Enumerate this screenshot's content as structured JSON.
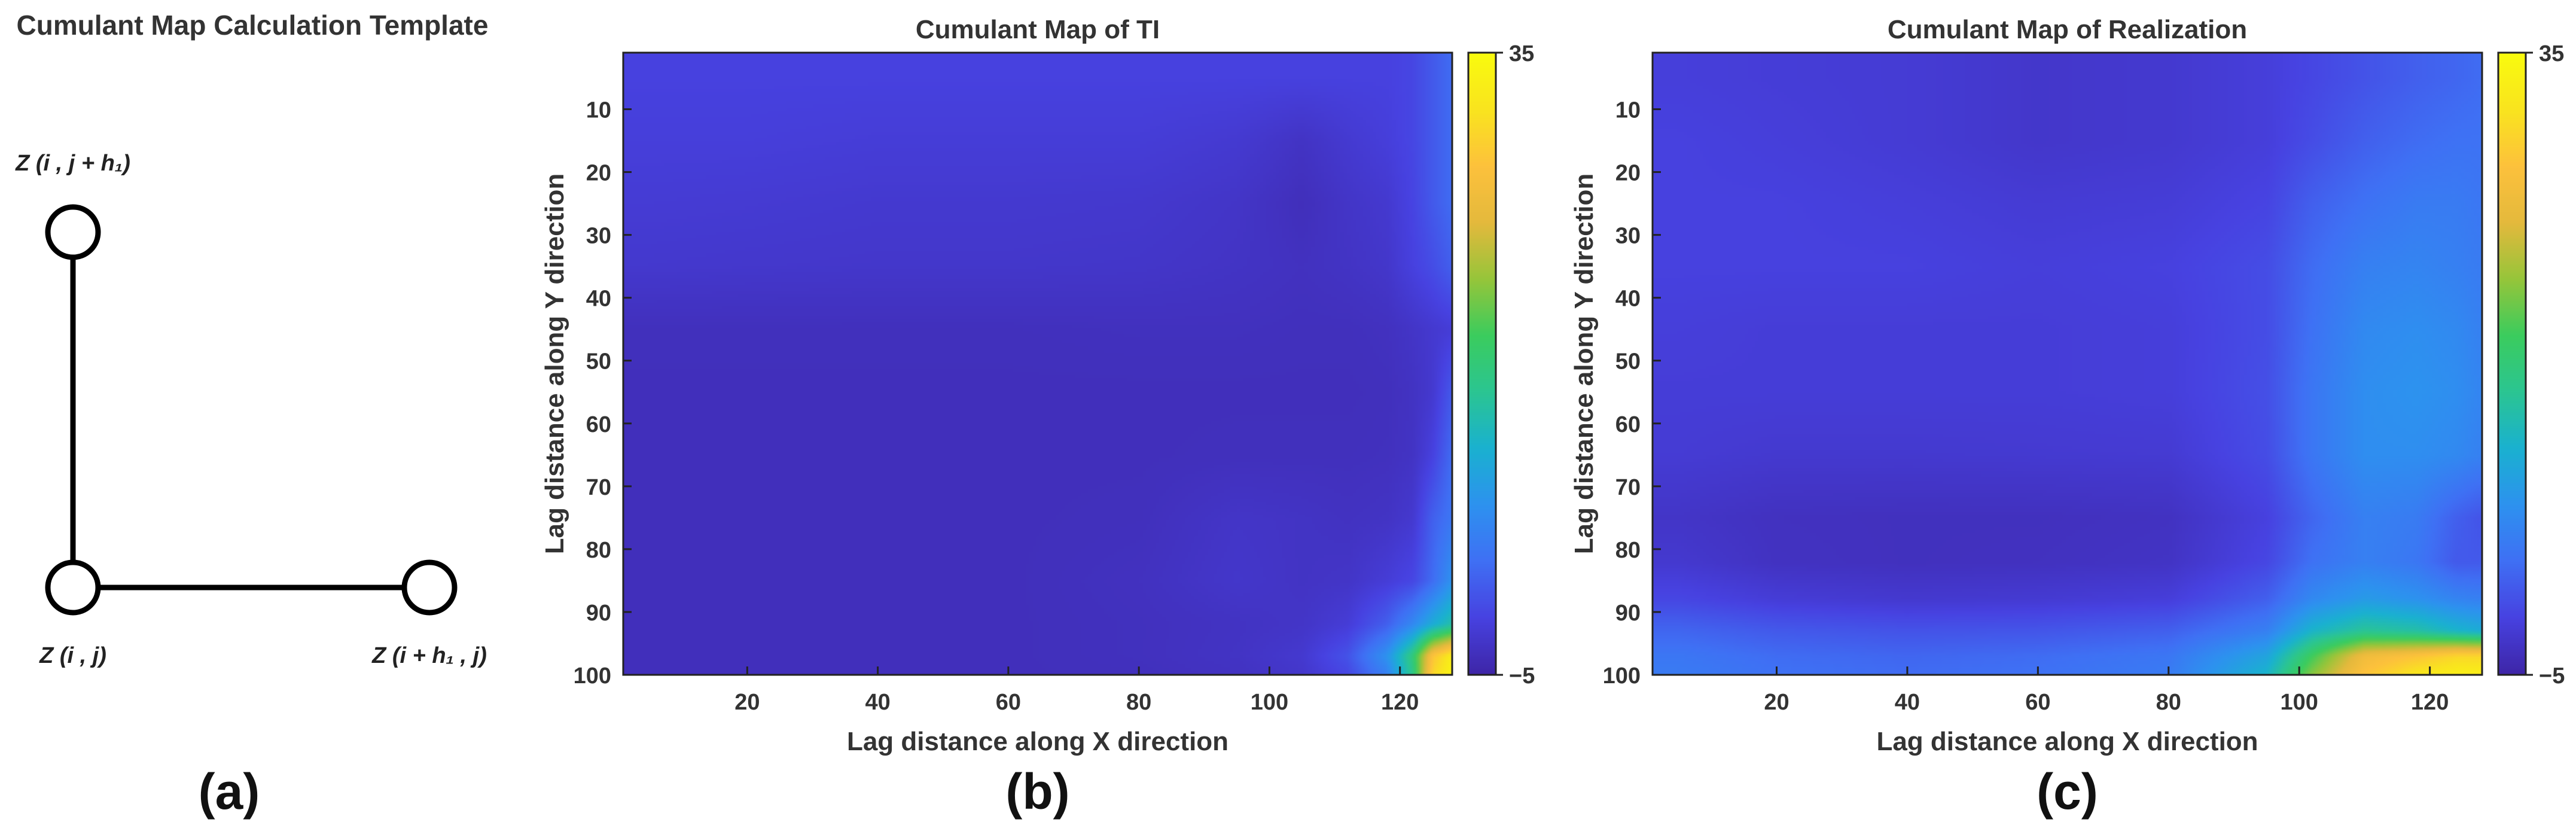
{
  "template": {
    "title": "Cumulant Map Calculation Template",
    "node_top": "Z (i , j + h₁)",
    "node_origin": "Z (i , j)",
    "node_right": "Z (i + h₁ , j)",
    "panel_label": "(a)"
  },
  "colors": {
    "text": "#333333",
    "axis": "#222222",
    "colormap": [
      "#3e26a8",
      "#4742e1",
      "#3f70f4",
      "#2d92ef",
      "#1ab1d0",
      "#2bc592",
      "#3bcc5e",
      "#96c53a",
      "#e4b93c",
      "#fdc13c",
      "#f9e41f",
      "#f9fb0e"
    ]
  },
  "chart_data": [
    {
      "type": "heatmap",
      "panel_label": "(b)",
      "title": "Cumulant Map of TI",
      "xlabel": "Lag distance along X direction",
      "ylabel": "Lag distance along Y direction",
      "xlim": [
        1,
        128
      ],
      "ylim": [
        1,
        100
      ],
      "y_reversed": true,
      "xticks": [
        20,
        40,
        60,
        80,
        100,
        120
      ],
      "yticks": [
        10,
        20,
        30,
        40,
        50,
        60,
        70,
        80,
        90,
        100
      ],
      "colorbar": {
        "min": -5,
        "max": 35,
        "tick_labels": [
          "35",
          "−5"
        ]
      },
      "rows_y": [
        5,
        15,
        25,
        35,
        45,
        55,
        65,
        75,
        85,
        92,
        97,
        100
      ],
      "cols_x": [
        5,
        20,
        40,
        60,
        80,
        95,
        105,
        112,
        118,
        122,
        125,
        128
      ],
      "values": [
        [
          -1.5,
          -1.5,
          -1.5,
          -1.5,
          -1.5,
          -1.5,
          -1.5,
          -1.5,
          -1.5,
          -1.0,
          0.5,
          2.0
        ],
        [
          -1.8,
          -1.8,
          -2.0,
          -2.0,
          -2.0,
          -2.4,
          -3.2,
          -2.4,
          -1.8,
          -1.0,
          0.5,
          2.0
        ],
        [
          -2.2,
          -2.3,
          -2.5,
          -2.5,
          -2.6,
          -3.0,
          -3.8,
          -3.0,
          -2.5,
          -1.2,
          0.5,
          2.0
        ],
        [
          -2.6,
          -2.7,
          -2.8,
          -2.8,
          -2.9,
          -3.2,
          -3.5,
          -3.2,
          -2.8,
          -1.5,
          -0.5,
          1.0
        ],
        [
          -3.7,
          -3.7,
          -3.7,
          -3.7,
          -3.6,
          -3.6,
          -3.7,
          -3.7,
          -3.5,
          -3.0,
          -2.5,
          -2.0
        ],
        [
          -3.8,
          -3.8,
          -3.8,
          -3.8,
          -3.8,
          -3.8,
          -3.8,
          -3.8,
          -3.7,
          -3.3,
          -2.5,
          0.5
        ],
        [
          -3.8,
          -3.8,
          -3.8,
          -3.8,
          -3.8,
          -3.7,
          -3.7,
          -3.7,
          -3.6,
          -3.2,
          -1.5,
          2.0
        ],
        [
          -3.8,
          -3.8,
          -3.8,
          -3.8,
          -3.7,
          -3.0,
          -3.2,
          -3.4,
          -3.2,
          -2.5,
          1.0,
          3.0
        ],
        [
          -3.8,
          -3.8,
          -3.8,
          -3.8,
          -3.5,
          -2.8,
          -3.2,
          -3.0,
          -2.0,
          -1.0,
          2.0,
          6.0
        ],
        [
          -3.8,
          -3.8,
          -3.8,
          -3.8,
          -3.6,
          -3.3,
          -3.0,
          -2.0,
          1.0,
          5.0,
          9.0,
          12.0
        ],
        [
          -3.8,
          -3.8,
          -3.8,
          -3.8,
          -3.6,
          -3.2,
          -2.5,
          0.0,
          6.0,
          15.0,
          28.0,
          33.0
        ],
        [
          -3.8,
          -3.8,
          -3.8,
          -3.8,
          -3.7,
          -3.4,
          -2.8,
          -1.0,
          4.0,
          14.0,
          30.0,
          34.0
        ]
      ]
    },
    {
      "type": "heatmap",
      "panel_label": "(c)",
      "title": "Cumulant Map of Realization",
      "xlabel": "Lag distance along X direction",
      "ylabel": "Lag distance along Y direction",
      "xlim": [
        1,
        128
      ],
      "ylim": [
        1,
        100
      ],
      "y_reversed": true,
      "xticks": [
        20,
        40,
        60,
        80,
        100,
        120
      ],
      "yticks": [
        10,
        20,
        30,
        40,
        50,
        60,
        70,
        80,
        90,
        100
      ],
      "colorbar": {
        "min": -5,
        "max": 35,
        "tick_labels": [
          "35",
          "−5"
        ]
      },
      "rows_y": [
        5,
        15,
        25,
        35,
        45,
        55,
        65,
        75,
        82,
        88,
        93,
        97,
        100
      ],
      "cols_x": [
        5,
        20,
        40,
        60,
        80,
        95,
        102,
        110,
        118,
        124,
        128
      ],
      "values": [
        [
          -1.8,
          -2.0,
          -2.2,
          -2.8,
          -2.5,
          -1.8,
          -1.0,
          0.0,
          1.0,
          1.5,
          2.0
        ],
        [
          -1.5,
          -1.8,
          -2.2,
          -2.8,
          -2.5,
          -1.8,
          -0.5,
          1.0,
          2.0,
          2.5,
          2.5
        ],
        [
          -1.5,
          -1.5,
          -1.8,
          -2.2,
          -2.0,
          -1.2,
          1.0,
          2.5,
          3.5,
          3.5,
          3.0
        ],
        [
          -1.5,
          -1.5,
          -1.5,
          -1.8,
          -1.5,
          -0.5,
          2.0,
          4.0,
          4.5,
          4.0,
          3.5
        ],
        [
          -1.8,
          -2.0,
          -2.0,
          -2.0,
          -1.8,
          -0.5,
          2.5,
          5.0,
          5.5,
          5.0,
          4.0
        ],
        [
          -2.0,
          -2.0,
          -2.0,
          -2.0,
          -1.8,
          -0.3,
          3.0,
          5.5,
          6.0,
          5.5,
          4.5
        ],
        [
          -2.2,
          -2.5,
          -2.5,
          -2.4,
          -2.3,
          -0.5,
          3.0,
          5.5,
          5.5,
          5.0,
          4.0
        ],
        [
          -3.0,
          -3.5,
          -3.6,
          -3.6,
          -3.4,
          -1.5,
          1.5,
          4.0,
          3.5,
          1.0,
          0.0
        ],
        [
          -2.5,
          -3.4,
          -3.6,
          -3.5,
          -3.2,
          -1.0,
          2.5,
          4.0,
          3.0,
          0.5,
          0.5
        ],
        [
          -1.0,
          -2.0,
          -2.5,
          -2.3,
          -1.8,
          1.0,
          5.0,
          7.0,
          6.0,
          4.5,
          4.0
        ],
        [
          1.5,
          0.5,
          0.0,
          0.2,
          1.0,
          4.0,
          10.0,
          13.0,
          12.0,
          10.0,
          9.0
        ],
        [
          3.0,
          2.0,
          1.5,
          2.0,
          3.0,
          8.0,
          17.0,
          26.0,
          28.0,
          30.0,
          30.0
        ],
        [
          3.5,
          2.5,
          2.0,
          2.5,
          3.5,
          10.0,
          20.0,
          28.0,
          32.0,
          33.0,
          33.0
        ]
      ]
    }
  ]
}
